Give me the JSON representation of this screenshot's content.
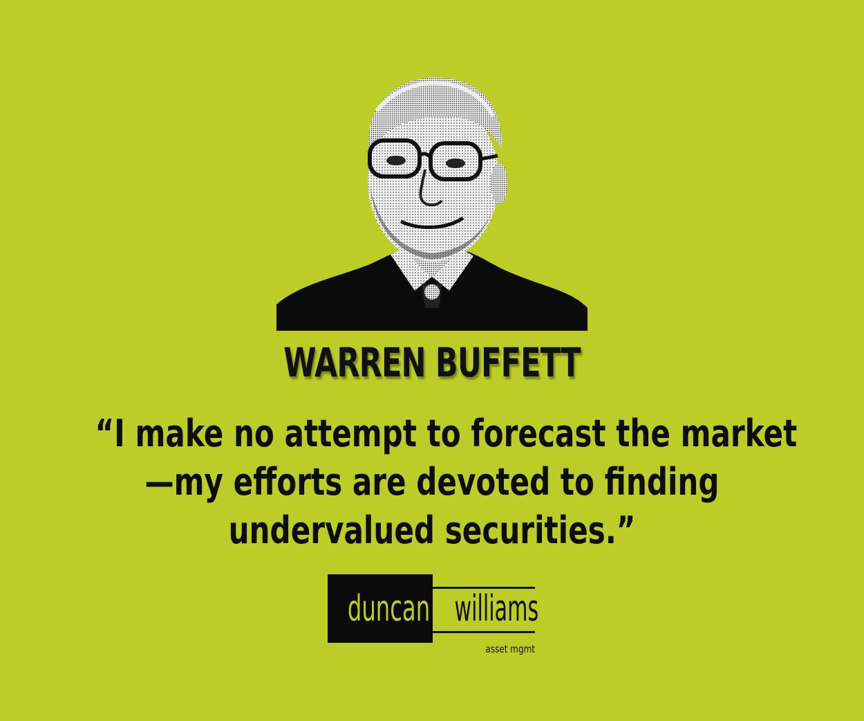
{
  "background_color": "#bccd28",
  "portrait": {
    "icon": "portrait-halftone-icon"
  },
  "person_name": "WARREN BUFFETT",
  "quote": {
    "line1": "“I make no attempt to forecast the market",
    "line2": "—my efforts are devoted to finding",
    "line3": "undervalued securities.”"
  },
  "logo": {
    "word1": "duncan",
    "word2": "williams",
    "tagline": "asset mgmt"
  }
}
